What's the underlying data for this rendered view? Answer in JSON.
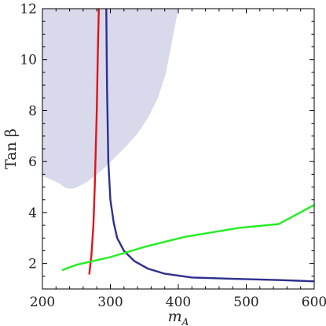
{
  "chart_data": {
    "type": "line",
    "xlabel": "m",
    "xlabel_sub": "A",
    "ylabel": "Tan β",
    "xlim": [
      200,
      600
    ],
    "ylim": [
      1,
      12
    ],
    "grid": false,
    "x_ticks": [
      200,
      300,
      400,
      500,
      600
    ],
    "y_ticks": [
      2,
      4,
      6,
      8,
      10,
      12
    ],
    "colors": {
      "shaded": "#d8d9ea",
      "red": "#e0141c",
      "blue": "#2e2f8e",
      "green": "#22ee22",
      "frame": "#000000"
    },
    "shaded_region": {
      "x": [
        200,
        200,
        212,
        225,
        233,
        240,
        247,
        255,
        262,
        268,
        274,
        280,
        288,
        297,
        310,
        325,
        340,
        355,
        370,
        382,
        392,
        400,
        400
      ],
      "y": [
        12,
        5.45,
        5.3,
        5.15,
        4.98,
        4.93,
        4.95,
        5.05,
        5.15,
        5.25,
        5.38,
        5.5,
        5.68,
        5.9,
        6.25,
        6.65,
        7.1,
        7.7,
        8.5,
        9.5,
        10.9,
        12,
        12
      ]
    },
    "series": [
      {
        "color": "red",
        "x": [
          269,
          272,
          275,
          277,
          278.5,
          280,
          281,
          282,
          283
        ],
        "y": [
          1.6,
          2.3,
          3.5,
          5.0,
          6.5,
          8.0,
          9.5,
          10.8,
          12.0
        ]
      },
      {
        "color": "blue",
        "x": [
          294,
          295,
          297,
          300,
          305,
          310,
          320,
          335,
          355,
          380,
          420,
          480,
          550,
          600
        ],
        "y": [
          12.0,
          9.0,
          6.0,
          4.5,
          3.6,
          3.0,
          2.5,
          2.1,
          1.8,
          1.6,
          1.45,
          1.4,
          1.35,
          1.3
        ]
      },
      {
        "color": "green",
        "x": [
          230,
          250,
          300,
          350,
          410,
          490,
          548,
          600
        ],
        "y": [
          1.75,
          1.95,
          2.25,
          2.65,
          3.05,
          3.4,
          3.55,
          4.3
        ]
      }
    ]
  }
}
